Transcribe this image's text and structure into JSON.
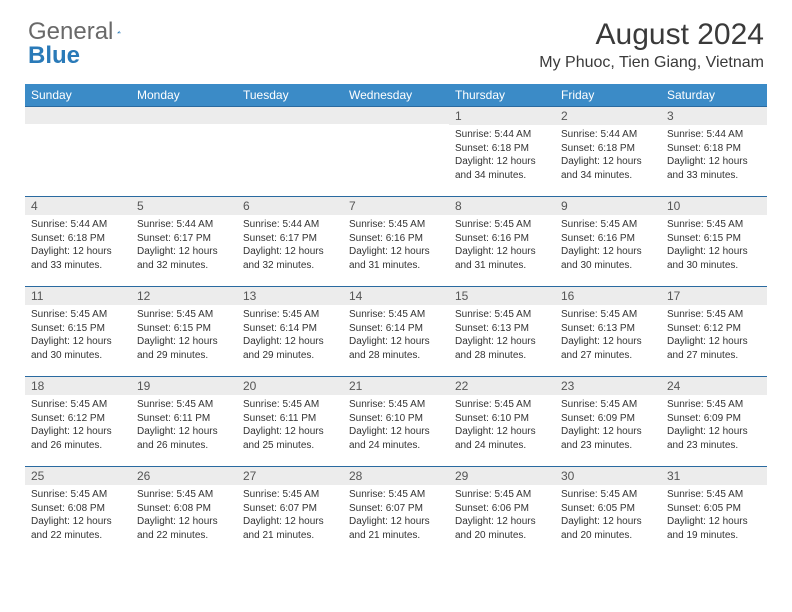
{
  "brand": {
    "part1": "General",
    "part2": "Blue"
  },
  "colors": {
    "header_bg": "#3b8bc7",
    "row_divider": "#2a6aa0",
    "daynum_bg": "#ececec",
    "text": "#333333",
    "brand_grey": "#696969",
    "brand_blue": "#2a7ab8",
    "background": "#ffffff"
  },
  "title": "August 2024",
  "location": "My Phuoc, Tien Giang, Vietnam",
  "day_headers": [
    "Sunday",
    "Monday",
    "Tuesday",
    "Wednesday",
    "Thursday",
    "Friday",
    "Saturday"
  ],
  "layout": {
    "weeks": 5,
    "first_day_column": 4,
    "days_in_month": 31,
    "font_size_header": 12,
    "font_size_daynum": 12,
    "font_size_cell": 10
  },
  "days": {
    "1": {
      "sunrise": "5:44 AM",
      "sunset": "6:18 PM",
      "daylight": "12 hours and 34 minutes."
    },
    "2": {
      "sunrise": "5:44 AM",
      "sunset": "6:18 PM",
      "daylight": "12 hours and 34 minutes."
    },
    "3": {
      "sunrise": "5:44 AM",
      "sunset": "6:18 PM",
      "daylight": "12 hours and 33 minutes."
    },
    "4": {
      "sunrise": "5:44 AM",
      "sunset": "6:18 PM",
      "daylight": "12 hours and 33 minutes."
    },
    "5": {
      "sunrise": "5:44 AM",
      "sunset": "6:17 PM",
      "daylight": "12 hours and 32 minutes."
    },
    "6": {
      "sunrise": "5:44 AM",
      "sunset": "6:17 PM",
      "daylight": "12 hours and 32 minutes."
    },
    "7": {
      "sunrise": "5:45 AM",
      "sunset": "6:16 PM",
      "daylight": "12 hours and 31 minutes."
    },
    "8": {
      "sunrise": "5:45 AM",
      "sunset": "6:16 PM",
      "daylight": "12 hours and 31 minutes."
    },
    "9": {
      "sunrise": "5:45 AM",
      "sunset": "6:16 PM",
      "daylight": "12 hours and 30 minutes."
    },
    "10": {
      "sunrise": "5:45 AM",
      "sunset": "6:15 PM",
      "daylight": "12 hours and 30 minutes."
    },
    "11": {
      "sunrise": "5:45 AM",
      "sunset": "6:15 PM",
      "daylight": "12 hours and 30 minutes."
    },
    "12": {
      "sunrise": "5:45 AM",
      "sunset": "6:15 PM",
      "daylight": "12 hours and 29 minutes."
    },
    "13": {
      "sunrise": "5:45 AM",
      "sunset": "6:14 PM",
      "daylight": "12 hours and 29 minutes."
    },
    "14": {
      "sunrise": "5:45 AM",
      "sunset": "6:14 PM",
      "daylight": "12 hours and 28 minutes."
    },
    "15": {
      "sunrise": "5:45 AM",
      "sunset": "6:13 PM",
      "daylight": "12 hours and 28 minutes."
    },
    "16": {
      "sunrise": "5:45 AM",
      "sunset": "6:13 PM",
      "daylight": "12 hours and 27 minutes."
    },
    "17": {
      "sunrise": "5:45 AM",
      "sunset": "6:12 PM",
      "daylight": "12 hours and 27 minutes."
    },
    "18": {
      "sunrise": "5:45 AM",
      "sunset": "6:12 PM",
      "daylight": "12 hours and 26 minutes."
    },
    "19": {
      "sunrise": "5:45 AM",
      "sunset": "6:11 PM",
      "daylight": "12 hours and 26 minutes."
    },
    "20": {
      "sunrise": "5:45 AM",
      "sunset": "6:11 PM",
      "daylight": "12 hours and 25 minutes."
    },
    "21": {
      "sunrise": "5:45 AM",
      "sunset": "6:10 PM",
      "daylight": "12 hours and 24 minutes."
    },
    "22": {
      "sunrise": "5:45 AM",
      "sunset": "6:10 PM",
      "daylight": "12 hours and 24 minutes."
    },
    "23": {
      "sunrise": "5:45 AM",
      "sunset": "6:09 PM",
      "daylight": "12 hours and 23 minutes."
    },
    "24": {
      "sunrise": "5:45 AM",
      "sunset": "6:09 PM",
      "daylight": "12 hours and 23 minutes."
    },
    "25": {
      "sunrise": "5:45 AM",
      "sunset": "6:08 PM",
      "daylight": "12 hours and 22 minutes."
    },
    "26": {
      "sunrise": "5:45 AM",
      "sunset": "6:08 PM",
      "daylight": "12 hours and 22 minutes."
    },
    "27": {
      "sunrise": "5:45 AM",
      "sunset": "6:07 PM",
      "daylight": "12 hours and 21 minutes."
    },
    "28": {
      "sunrise": "5:45 AM",
      "sunset": "6:07 PM",
      "daylight": "12 hours and 21 minutes."
    },
    "29": {
      "sunrise": "5:45 AM",
      "sunset": "6:06 PM",
      "daylight": "12 hours and 20 minutes."
    },
    "30": {
      "sunrise": "5:45 AM",
      "sunset": "6:05 PM",
      "daylight": "12 hours and 20 minutes."
    },
    "31": {
      "sunrise": "5:45 AM",
      "sunset": "6:05 PM",
      "daylight": "12 hours and 19 minutes."
    }
  },
  "labels": {
    "sunrise": "Sunrise:",
    "sunset": "Sunset:",
    "daylight": "Daylight:"
  }
}
